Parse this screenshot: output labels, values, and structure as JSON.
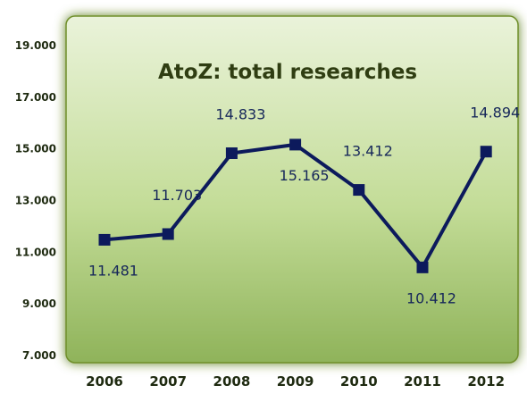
{
  "chart_data": {
    "type": "line",
    "title": "AtoZ: total researches",
    "xlabel": "",
    "ylabel": "",
    "categories": [
      "2006",
      "2007",
      "2008",
      "2009",
      "2010",
      "2011",
      "2012"
    ],
    "series": [
      {
        "values": [
          11481,
          11703,
          14833,
          15165,
          13412,
          10412,
          14894
        ],
        "labels": [
          "11.481",
          "11.703",
          "14.833",
          "15.165",
          "13.412",
          "10.412",
          "14.894"
        ],
        "label_positions": [
          "below",
          "above",
          "above",
          "below",
          "above",
          "below",
          "above"
        ]
      }
    ],
    "ylim": [
      7000,
      19000
    ],
    "yticks": [
      7000,
      9000,
      11000,
      13000,
      15000,
      17000,
      19000
    ],
    "ytick_labels": [
      "7.000",
      "9.000",
      "11.000",
      "13.000",
      "15.000",
      "17.000",
      "19.000"
    ],
    "grid": false,
    "legend": "none",
    "colors": {
      "line": "#0c1a5c",
      "marker": "#0c1a5c",
      "plot_bg_top": "#eaf3da",
      "plot_bg_bottom": "#8fb35a",
      "plot_glow": "#5d7f1e",
      "title": "#2f3d12",
      "axis_text": "#1e2a10",
      "data_label": "#16275a"
    }
  }
}
